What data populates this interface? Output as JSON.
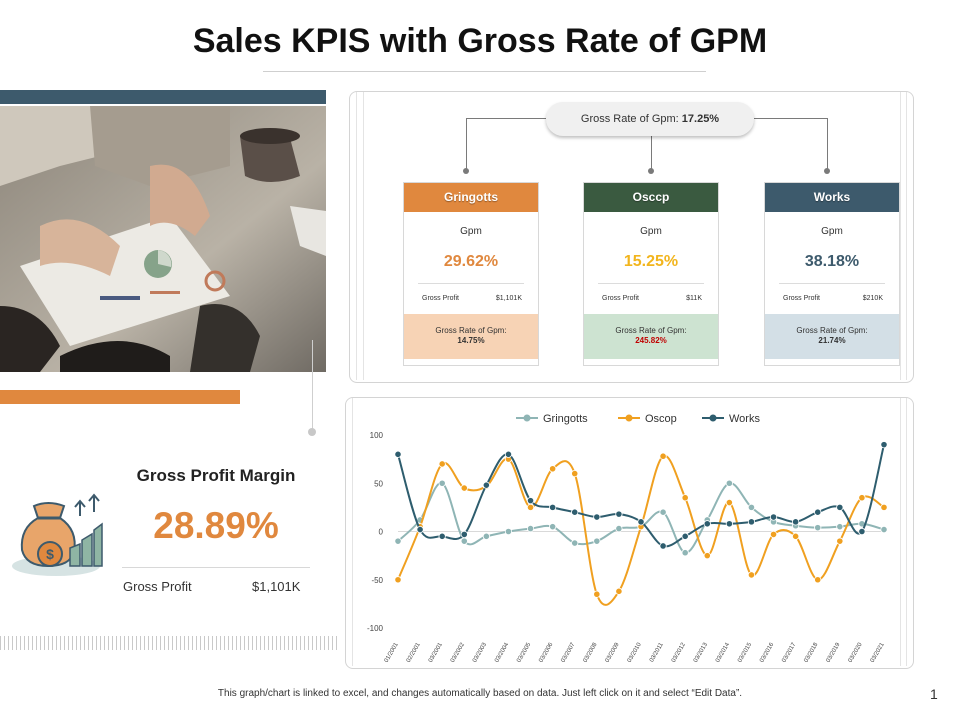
{
  "title": "Sales KPIS with Gross Rate of GPM",
  "summary": {
    "heading": "Gross Profit Margin",
    "value": "28.89%",
    "gross_profit_label": "Gross Profit",
    "gross_profit_value": "$1,101K"
  },
  "overall": {
    "label": "Gross Rate of Gpm:",
    "value": "17.25%"
  },
  "cards": [
    {
      "name": "Gringotts",
      "color": "#e0883e",
      "foot_bg": "#f7d3b5",
      "gpm_label": "Gpm",
      "gpm": "29.62%",
      "gpm_color": "#e0883e",
      "gp_label": "Gross Profit",
      "gp_value": "$1,101K",
      "rate_label": "Gross Rate of Gpm:",
      "rate": "14.75%",
      "rate_color": "#333333"
    },
    {
      "name": "Osccp",
      "color": "#3a5a40",
      "foot_bg": "#cde3d1",
      "gpm_label": "Gpm",
      "gpm": "15.25%",
      "gpm_color": "#f2b51d",
      "gp_label": "Gross Profit",
      "gp_value": "$11K",
      "rate_label": "Gross Rate of Gpm:",
      "rate": "245.82%",
      "rate_color": "#c00000"
    },
    {
      "name": "Works",
      "color": "#3d5a6c",
      "foot_bg": "#d3dfe6",
      "gpm_label": "Gpm",
      "gpm": "38.18%",
      "gpm_color": "#3d5a6c",
      "gp_label": "Gross Profit",
      "gp_value": "$210K",
      "rate_label": "Gross Rate of Gpm:",
      "rate": "21.74%",
      "rate_color": "#333333"
    }
  ],
  "chart_data": {
    "type": "line",
    "title": "",
    "xlabel": "",
    "ylabel": "",
    "ylim": [
      -100,
      100
    ],
    "yticks": [
      100,
      50,
      0,
      -50,
      -100
    ],
    "legend_position": "top",
    "categories": [
      "01/2001",
      "02/2001",
      "03/2001",
      "03/2002",
      "03/2003",
      "03/2004",
      "03/2005",
      "03/2006",
      "03/2007",
      "03/2008",
      "03/2009",
      "03/2010",
      "03/2011",
      "03/2012",
      "03/2013",
      "03/2014",
      "03/2015",
      "03/2016",
      "03/2017",
      "03/2018",
      "03/2019",
      "03/2020",
      "03/2021"
    ],
    "series": [
      {
        "name": "Gringotts",
        "color": "#8fb5b5",
        "values": [
          -10,
          12,
          50,
          -10,
          -5,
          0,
          3,
          5,
          -12,
          -10,
          3,
          5,
          20,
          -22,
          12,
          50,
          25,
          10,
          6,
          4,
          5,
          8,
          2
        ]
      },
      {
        "name": "Oscop",
        "color": "#f0a020",
        "values": [
          -50,
          5,
          70,
          45,
          47,
          75,
          25,
          65,
          60,
          -65,
          -62,
          5,
          78,
          35,
          -25,
          30,
          -45,
          -3,
          -5,
          -50,
          -10,
          35,
          25
        ]
      },
      {
        "name": "Works",
        "color": "#2e5d6e",
        "values": [
          80,
          2,
          -5,
          -3,
          48,
          80,
          32,
          25,
          20,
          15,
          18,
          10,
          -15,
          -5,
          8,
          8,
          10,
          15,
          10,
          20,
          25,
          0,
          90
        ]
      }
    ]
  },
  "footnote": "This graph/chart is linked to excel, and changes automatically based on data. Just left click on it and select “Edit Data”.",
  "page_number": "1"
}
